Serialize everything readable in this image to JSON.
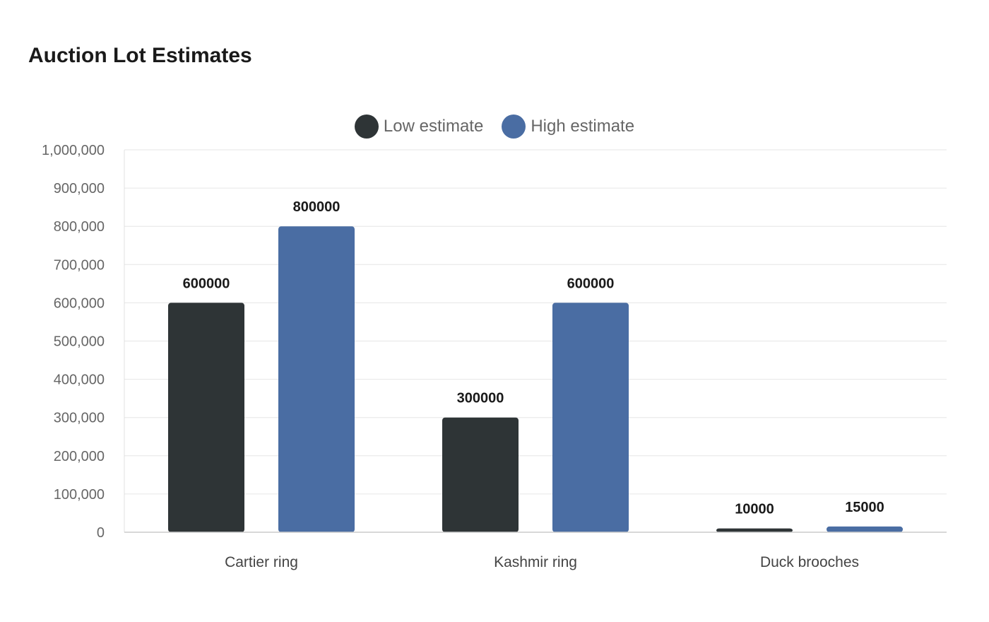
{
  "chart_data": {
    "type": "bar",
    "title": "Auction Lot Estimates",
    "categories": [
      "Cartier ring",
      "Kashmir ring",
      "Duck brooches"
    ],
    "series": [
      {
        "name": "Low estimate",
        "values": [
          600000,
          300000,
          10000
        ],
        "color": "#2e3436",
        "labels": [
          "600000",
          "300000",
          "10000"
        ]
      },
      {
        "name": "High estimate",
        "values": [
          800000,
          600000,
          15000
        ],
        "color": "#4a6da3",
        "labels": [
          "800000",
          "600000",
          "15000"
        ]
      }
    ],
    "ylim": [
      0,
      1000000
    ],
    "yticks": [
      0,
      100000,
      200000,
      300000,
      400000,
      500000,
      600000,
      700000,
      800000,
      900000,
      1000000
    ],
    "ytick_labels": [
      "0",
      "100,000",
      "200,000",
      "300,000",
      "400,000",
      "500,000",
      "600,000",
      "700,000",
      "800,000",
      "900,000",
      "1,000,000"
    ],
    "grid": true,
    "legend_position": "top-center",
    "xlabel": "",
    "ylabel": ""
  }
}
